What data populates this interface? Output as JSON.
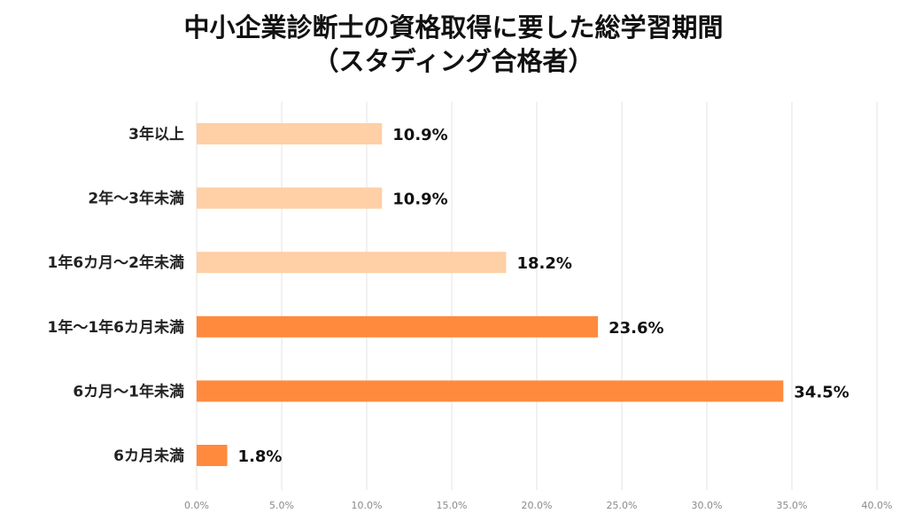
{
  "chart_data": {
    "type": "bar",
    "orientation": "horizontal",
    "title": "中小企業診断士の資格取得に要した総学習期間",
    "subtitle": "（スタディング合格者）",
    "xlabel": "",
    "ylabel": "",
    "categories": [
      "3年以上",
      "2年～3年未満",
      "1年6カ月～2年未満",
      "1年～1年6カ月未満",
      "6カ月～1年未満",
      "6カ月未満"
    ],
    "values": [
      10.9,
      10.9,
      18.2,
      23.6,
      34.5,
      1.8
    ],
    "value_labels": [
      "10.9%",
      "10.9%",
      "18.2%",
      "23.6%",
      "34.5%",
      "1.8%"
    ],
    "colors": [
      "#FFCFA6",
      "#FFCFA6",
      "#FFCFA6",
      "#FF8A3D",
      "#FF8A3D",
      "#FF8A3D"
    ],
    "xlim": [
      0,
      40
    ],
    "xticks": [
      0,
      5,
      10,
      15,
      20,
      25,
      30,
      35,
      40
    ],
    "xtick_labels": [
      "0.0%",
      "5.0%",
      "10.0%",
      "15.0%",
      "20.0%",
      "25.0%",
      "30.0%",
      "35.0%",
      "40.0%"
    ],
    "grid": "vertical",
    "legend": "none"
  }
}
